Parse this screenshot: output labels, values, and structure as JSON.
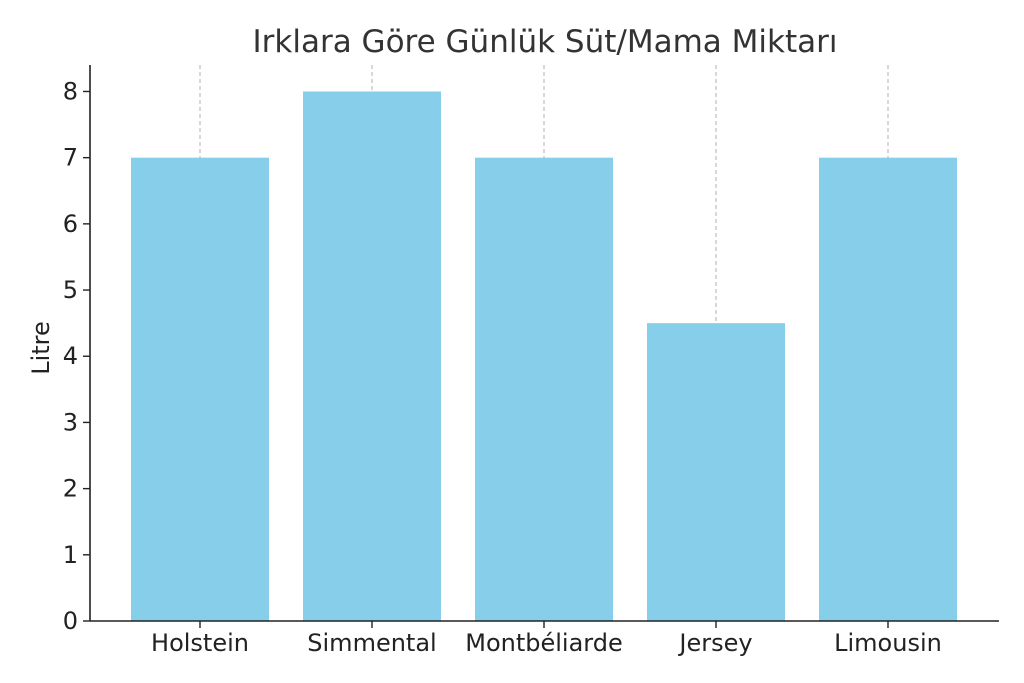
{
  "chart_data": {
    "type": "bar",
    "title": "Irklara Göre Günlük Süt/Mama Miktarı",
    "xlabel": "",
    "ylabel": "Litre",
    "categories": [
      "Holstein",
      "Simmental",
      "Montbéliarde",
      "Jersey",
      "Limousin"
    ],
    "values": [
      7,
      8,
      7,
      4.5,
      7
    ],
    "ylim": [
      0,
      8.4
    ],
    "yticks": [
      0,
      1,
      2,
      3,
      4,
      5,
      6,
      7,
      8
    ],
    "grid": "x-only dashed",
    "bar_color": "#87CEEB",
    "grid_color": "#b0b0b0",
    "axis_color": "#222222"
  }
}
